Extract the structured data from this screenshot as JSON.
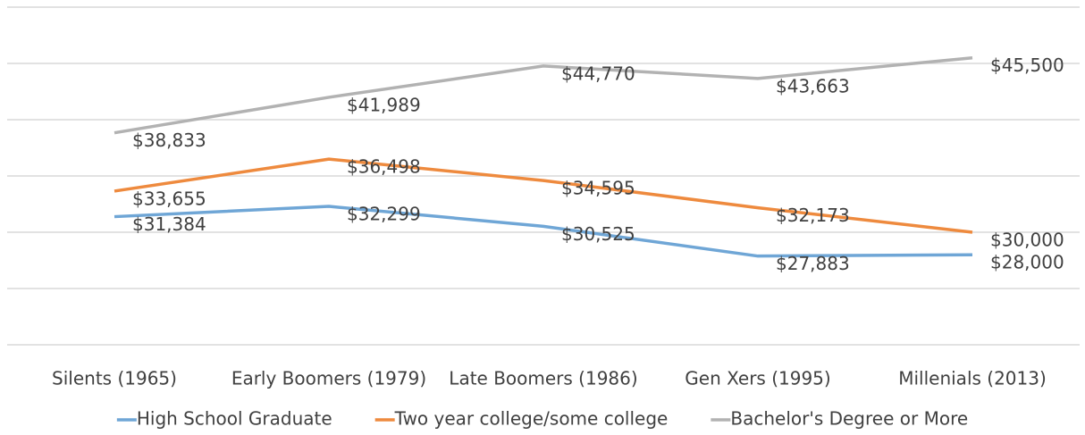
{
  "chart_data": {
    "type": "line",
    "categories": [
      "Silents (1965)",
      "Early Boomers (1979)",
      "Late Boomers (1986)",
      "Gen Xers (1995)",
      "Millenials (2013)"
    ],
    "series": [
      {
        "name": "High School Graduate",
        "color": "#6fa6d6",
        "values": [
          31384,
          32299,
          30525,
          27883,
          28000
        ],
        "value_labels": [
          "$31,384",
          "$32,299",
          "$30,525",
          "$27,883",
          "$28,000"
        ]
      },
      {
        "name": "Two year college/some college",
        "color": "#ee8a3e",
        "values": [
          33655,
          36498,
          34595,
          32173,
          30000
        ],
        "value_labels": [
          "$33,655",
          "$36,498",
          "$34,595",
          "$32,173",
          "$30,000"
        ]
      },
      {
        "name": "Bachelor's Degree or More",
        "color": "#b2b2b2",
        "values": [
          38833,
          41989,
          44770,
          43663,
          45500
        ],
        "value_labels": [
          "$38,833",
          "$41,989",
          "$44,770",
          "$43,663",
          "$45,500"
        ]
      }
    ],
    "ylim": [
      20000,
      50000
    ],
    "yticks": [
      20000,
      25000,
      30000,
      35000,
      40000,
      45000,
      50000
    ],
    "ytick_labels": false,
    "grid": true,
    "legend": "bottom"
  }
}
